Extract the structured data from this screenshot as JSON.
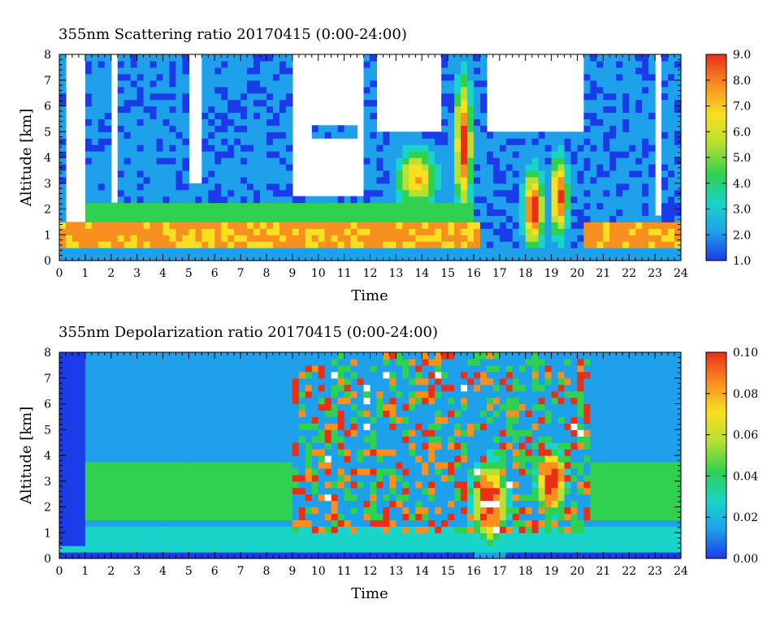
{
  "chart_data": [
    {
      "type": "heatmap",
      "title": "355nm Scattering ratio  20170415 (0:00-24:00)",
      "xlabel": "Time",
      "ylabel": "Altitude [km]",
      "xlim": [
        0,
        24
      ],
      "ylim": [
        0,
        8
      ],
      "x_ticks": [
        "0",
        "1",
        "2",
        "3",
        "4",
        "5",
        "6",
        "7",
        "8",
        "9",
        "10",
        "11",
        "12",
        "13",
        "14",
        "15",
        "16",
        "17",
        "18",
        "19",
        "20",
        "21",
        "22",
        "23",
        "24"
      ],
      "y_ticks": [
        "0",
        "1",
        "2",
        "3",
        "4",
        "5",
        "6",
        "7",
        "8"
      ],
      "colorbar": {
        "min": 1.0,
        "max": 9.0,
        "tick_labels": [
          "1.0",
          "2.0",
          "3.0",
          "4.0",
          "5.0",
          "6.0",
          "7.0",
          "8.0",
          "9.0"
        ],
        "colors": [
          "#1a3ce8",
          "#1fa0ea",
          "#19d4c8",
          "#30d050",
          "#b8e030",
          "#f8e020",
          "#f89020",
          "#e83018"
        ]
      },
      "features": {
        "boundary_layer_top_km": 1.5,
        "elevated_layer_top_km": 2.3,
        "boundary_layer_peak_ratio": 7.5,
        "cloud_tops_km": [
          5.2,
          7.6,
          4.6
        ]
      }
    },
    {
      "type": "heatmap",
      "title": "355nm Depolarization ratio  20170415 (0:00-24:00)",
      "xlabel": "Time",
      "ylabel": "Altitude [km]",
      "xlim": [
        0,
        24
      ],
      "ylim": [
        0,
        8
      ],
      "x_ticks": [
        "0",
        "1",
        "2",
        "3",
        "4",
        "5",
        "6",
        "7",
        "8",
        "9",
        "10",
        "11",
        "12",
        "13",
        "14",
        "15",
        "16",
        "17",
        "18",
        "19",
        "20",
        "21",
        "22",
        "23",
        "24"
      ],
      "y_ticks": [
        "0",
        "1",
        "2",
        "3",
        "4",
        "5",
        "6",
        "7",
        "8"
      ],
      "colorbar": {
        "min": 0.0,
        "max": 0.1,
        "tick_labels": [
          "0.00",
          "0.02",
          "0.04",
          "0.06",
          "0.08",
          "0.10"
        ],
        "colors": [
          "#1a3ce8",
          "#1fa0ea",
          "#19d4c8",
          "#30d050",
          "#b8e030",
          "#f8e020",
          "#f89020",
          "#e83018"
        ]
      },
      "features": {
        "dust_layer_range_km": [
          1.5,
          3.8
        ],
        "dust_layer_ratio": 0.04
      }
    }
  ]
}
